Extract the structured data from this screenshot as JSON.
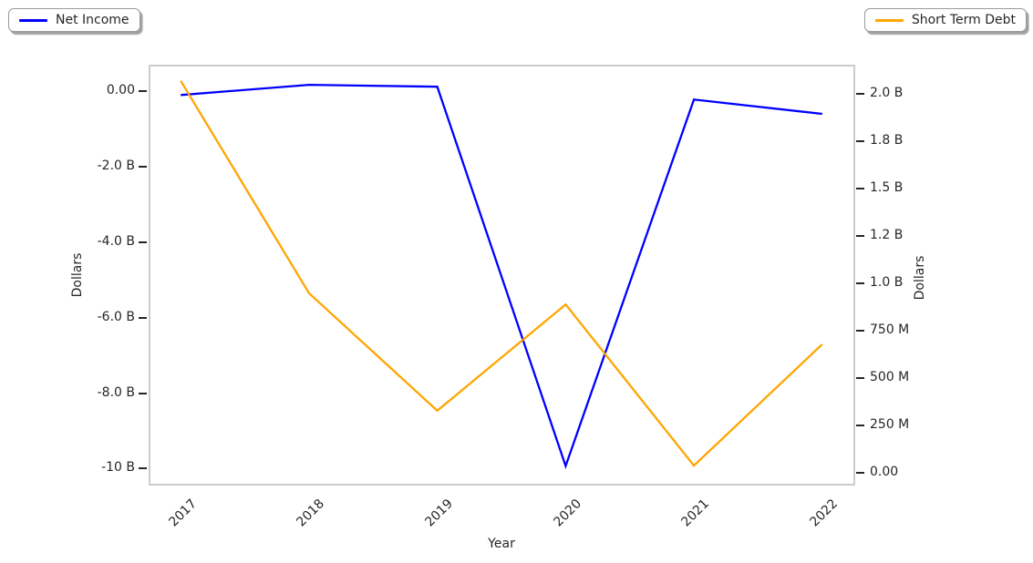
{
  "chart_data": {
    "type": "line",
    "title": "",
    "xlabel": "Year",
    "x_categories": [
      "2017",
      "2018",
      "2019",
      "2020",
      "2021",
      "2022"
    ],
    "x_range_index": [
      -0.25,
      5.25
    ],
    "series": [
      {
        "name": "Net Income",
        "axis": "left",
        "color": "#0000ff",
        "unit": "USD",
        "values_billions": [
          -0.1,
          0.17,
          0.12,
          -9.93,
          -0.22,
          -0.6
        ]
      },
      {
        "name": "Short Term Debt",
        "axis": "right",
        "color": "#ffa500",
        "unit": "USD",
        "values_billions": [
          2.07,
          0.95,
          0.33,
          0.89,
          0.04,
          0.68
        ]
      }
    ],
    "axis_left": {
      "label": "Dollars",
      "range_billions": [
        -10.45,
        0.68
      ],
      "tick_values": [
        0,
        -2,
        -4,
        -6,
        -8,
        -10
      ],
      "tick_labels": [
        "0.00",
        "-2.0 B",
        "-4.0 B",
        "-6.0 B",
        "-8.0 B",
        "-10 B"
      ]
    },
    "axis_right": {
      "label": "Dollars",
      "range_billions": [
        -0.065,
        2.15
      ],
      "tick_values": [
        0,
        0.25,
        0.5,
        0.75,
        1.0,
        1.25,
        1.5,
        1.75,
        2.0
      ],
      "tick_labels": [
        "0.00",
        "250 M",
        "500 M",
        "750 M",
        "1.0 B",
        "1.2 B",
        "1.5 B",
        "1.8 B",
        "2.0 B"
      ]
    },
    "grid": false,
    "legend_left": {
      "label": "Net Income"
    },
    "legend_right": {
      "label": "Short Term Debt"
    }
  },
  "colors": {
    "net_income_line": "#0000ff",
    "short_term_debt_line": "#ffa500",
    "spine": "#cccccc",
    "tick": "#262626",
    "text": "#262626"
  }
}
